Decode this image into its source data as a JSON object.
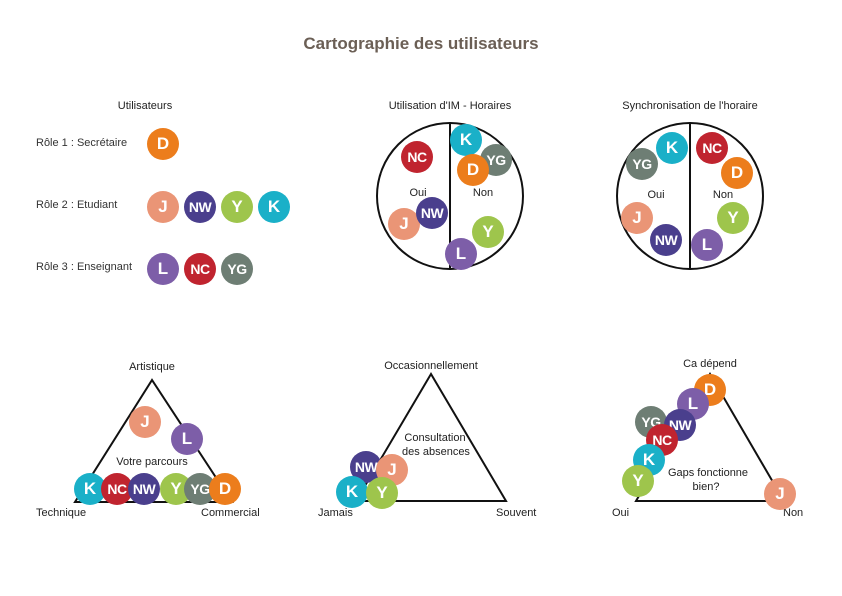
{
  "title": "Cartographie des utilisateurs",
  "colors": {
    "D": "#ec7d1c",
    "J": "#ea9576",
    "NW": "#4a3f8d",
    "Y": "#9ec54c",
    "K": "#1ab0c8",
    "L": "#7d5ea8",
    "NC": "#c0242f",
    "YG": "#6e7e74"
  },
  "users_panel": {
    "heading": "Utilisateurs",
    "roles": [
      {
        "label": "Rôle 1 : Secrétaire",
        "users": [
          "D"
        ]
      },
      {
        "label": "Rôle 2 : Etudiant",
        "users": [
          "J",
          "NW",
          "Y",
          "K"
        ]
      },
      {
        "label": "Rôle 3 : Enseignant",
        "users": [
          "L",
          "NC",
          "YG"
        ]
      }
    ]
  },
  "circle1": {
    "heading": "Utilisation d'IM - Horaires",
    "left_label": "Oui",
    "right_label": "Non",
    "left_users": [
      "NC",
      "J",
      "NW"
    ],
    "right_users": [
      "K",
      "YG",
      "D",
      "Y",
      "L"
    ]
  },
  "circle2": {
    "heading": "Synchronisation de l'horaire",
    "left_label": "Oui",
    "right_label": "Non",
    "left_users": [
      "YG",
      "K",
      "J",
      "NW"
    ],
    "right_users": [
      "NC",
      "D",
      "Y",
      "L"
    ]
  },
  "triangle1": {
    "top_label": "Artistique",
    "left_label": "Technique",
    "right_label": "Commercial",
    "center_text": "Votre parcours",
    "users": [
      "J",
      "L",
      "K",
      "NC",
      "NW",
      "Y",
      "YG",
      "D"
    ]
  },
  "triangle2": {
    "top_label": "Occasionnellement",
    "left_label": "Jamais",
    "right_label": "Souvent",
    "center_text_1": "Consultation",
    "center_text_2": "des absences",
    "users": [
      "NW",
      "J",
      "K",
      "Y"
    ]
  },
  "triangle3": {
    "top_label": "Ca dépend",
    "left_label": "Oui",
    "right_label": "Non",
    "center_text_1": "Gaps fonctionne",
    "center_text_2": "bien?",
    "users": [
      "D",
      "L",
      "YG",
      "NW",
      "NC",
      "K",
      "Y",
      "J"
    ]
  }
}
